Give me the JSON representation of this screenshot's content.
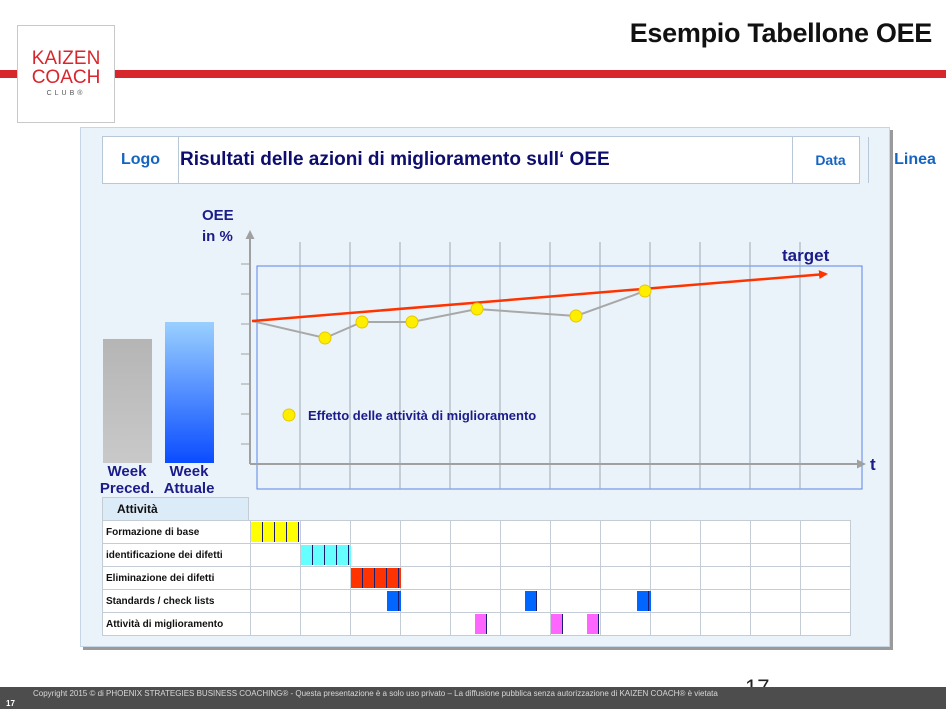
{
  "slide": {
    "title": "Esempio Tabellone OEE",
    "logo": {
      "line1": "KAIZEN",
      "line2": "COACH",
      "line3": "CLUB®"
    },
    "page_number": "17",
    "page_number_small": "17",
    "copyright": "Copyright 2015 © di PHOENIX STRATEGIES BUSINESS COACHING® - Questa presentazione è a solo uso privato – La diffusione pubblica senza autorizzazione di KAIZEN COACH® è vietata"
  },
  "board": {
    "header": {
      "logo": "Logo",
      "title": "Risultati delle azioni di miglioramento sull‘ OEE",
      "data": "Data",
      "linea": "Linea"
    },
    "y_label_1": "OEE",
    "y_label_2": "in %",
    "x_label": "t",
    "target_label": "target",
    "legend": "Effetto delle attività di miglioramento",
    "bars": {
      "prev_1": "Week",
      "prev_2": "Preced.",
      "curr_1": "Week",
      "curr_2": "Attuale"
    },
    "activities_header": "Attività",
    "activities": [
      {
        "label": "Formazione di base",
        "color": "#ffff00",
        "blocks": [
          [
            0,
            0,
            4
          ]
        ]
      },
      {
        "label": "identificazione dei difetti",
        "color": "#66ffff",
        "blocks": [
          [
            1,
            0,
            5
          ]
        ]
      },
      {
        "label": "Eliminazione dei difetti",
        "color": "#ff3300",
        "blocks": [
          [
            2,
            0,
            5
          ]
        ]
      },
      {
        "label": "Standards / check lists",
        "color": "#0066ff",
        "blocks": [
          [
            2,
            3,
            5
          ],
          [
            5,
            2,
            1
          ],
          [
            7,
            3,
            2
          ]
        ]
      },
      {
        "label": "Attività di miglioramento",
        "color": "#ff66ff",
        "blocks": [
          [
            4,
            2,
            1
          ],
          [
            6,
            0,
            1
          ],
          [
            6,
            3,
            1
          ]
        ]
      }
    ]
  },
  "colors": {
    "accent_red": "#d8262d",
    "point_yellow": "#ffee00",
    "target_line": "#ff3300",
    "trend_line": "#a8a8a8",
    "label_blue": "#1b1b8a"
  }
}
